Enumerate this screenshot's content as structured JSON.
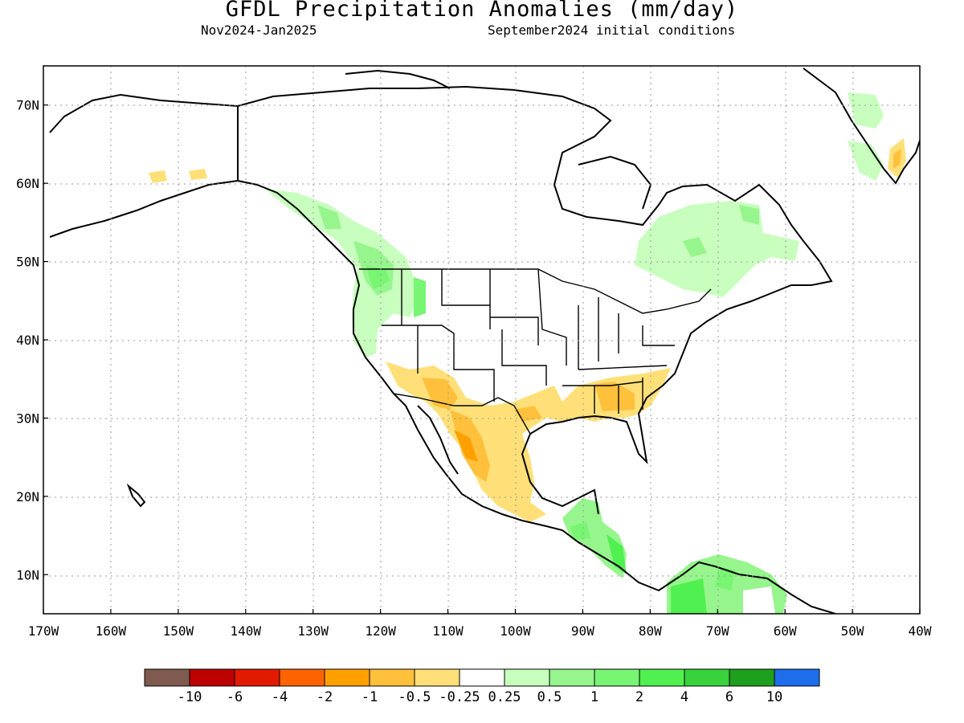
{
  "title": "GFDL Precipitation Anomalies (mm/day)",
  "subtitle_left": "Nov2024-Jan2025",
  "subtitle_right": "September2024 initial conditions",
  "map": {
    "lon_range": [
      -170,
      -40
    ],
    "lat_range": [
      5,
      75
    ],
    "lat_ticks": [
      "70N",
      "60N",
      "50N",
      "40N",
      "30N",
      "20N",
      "10N"
    ],
    "lon_ticks": [
      "170W",
      "160W",
      "150W",
      "140W",
      "130W",
      "120W",
      "110W",
      "100W",
      "90W",
      "80W",
      "70W",
      "60W",
      "50W",
      "40W"
    ],
    "gridlines": true
  },
  "legend": {
    "colors": [
      "#7f5a4f",
      "#bd0000",
      "#e21a00",
      "#ff6400",
      "#ffa000",
      "#ffc03c",
      "#ffe078",
      "#ffffff",
      "#c8ffbe",
      "#96f58c",
      "#78f573",
      "#50f050",
      "#37d23c",
      "#1ea01e",
      "#1e6eeb"
    ],
    "labels": [
      "-10",
      "-6",
      "-4",
      "-2",
      "-1",
      "-0.5",
      "-0.25",
      "0.25",
      "0.5",
      "1",
      "2",
      "4",
      "6",
      "10"
    ]
  }
}
